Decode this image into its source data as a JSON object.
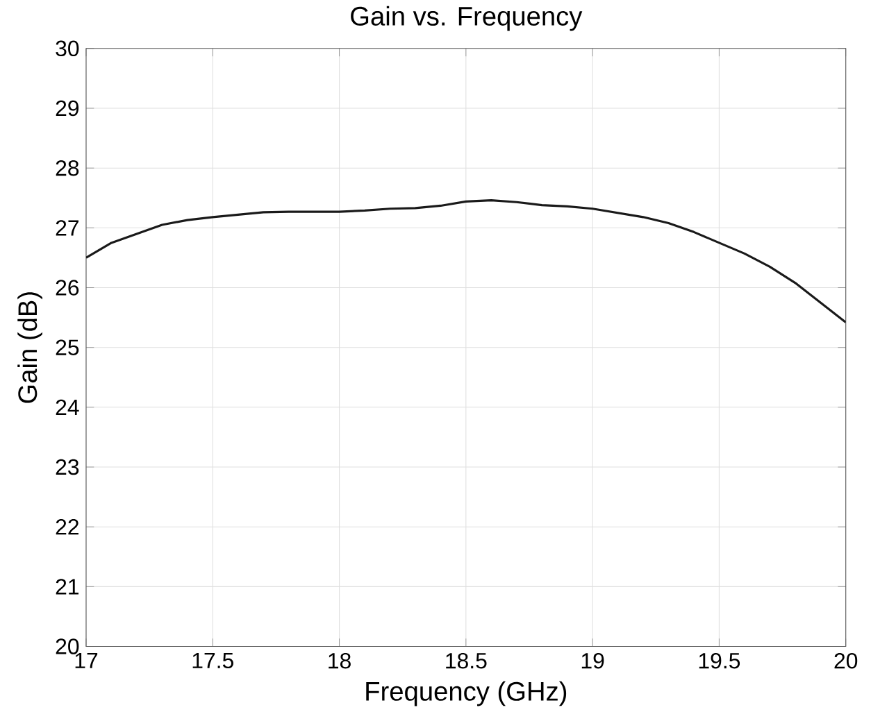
{
  "chart_data": {
    "type": "line",
    "title": "Gain vs. Frequency",
    "xlabel": "Frequency (GHz)",
    "ylabel": "Gain (dB)",
    "x": [
      17,
      17.1,
      17.2,
      17.3,
      17.4,
      17.5,
      17.6,
      17.7,
      17.8,
      17.9,
      18,
      18.1,
      18.2,
      18.3,
      18.4,
      18.5,
      18.6,
      18.7,
      18.8,
      18.9,
      19,
      19.1,
      19.2,
      19.3,
      19.4,
      19.5,
      19.6,
      19.7,
      19.8,
      19.9,
      20
    ],
    "series": [
      {
        "color": "#1a1a1a",
        "values": [
          26.5,
          26.75,
          26.9,
          27.05,
          27.13,
          27.18,
          27.22,
          27.26,
          27.27,
          27.27,
          27.27,
          27.29,
          27.32,
          27.33,
          27.37,
          27.44,
          27.46,
          27.43,
          27.38,
          27.36,
          27.32,
          27.25,
          27.18,
          27.08,
          26.93,
          26.75,
          26.57,
          26.35,
          26.08,
          25.75,
          25.42
        ]
      }
    ],
    "xlim": [
      17,
      20
    ],
    "ylim": [
      20,
      30
    ],
    "xticks": [
      17,
      17.5,
      18,
      18.5,
      19,
      19.5,
      20
    ],
    "yticks": [
      20,
      21,
      22,
      23,
      24,
      25,
      26,
      27,
      28,
      29,
      30
    ],
    "grid": true,
    "marker": "none",
    "line_style": "solid"
  }
}
